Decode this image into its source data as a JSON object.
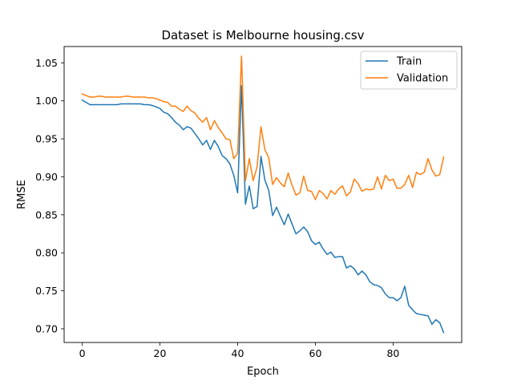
{
  "chart_data": {
    "type": "line",
    "title": "Dataset is Melbourne housing.csv",
    "xlabel": "Epoch",
    "ylabel": "RMSE",
    "xlim": [
      -4.65,
      97.65
    ],
    "ylim": [
      0.682,
      1.0715
    ],
    "xticks": [
      0,
      20,
      40,
      60,
      80
    ],
    "yticks": [
      0.7,
      0.75,
      0.8,
      0.85,
      0.9,
      0.95,
      1.0,
      1.05
    ],
    "ytick_labels": [
      "0.70",
      "0.75",
      "0.80",
      "0.85",
      "0.90",
      "0.95",
      "1.00",
      "1.05"
    ],
    "grid": false,
    "legend_position": "top-right",
    "series": [
      {
        "name": "Train",
        "color": "#1f77b4",
        "values": [
          1.001,
          0.998,
          0.995,
          0.995,
          0.995,
          0.995,
          0.995,
          0.995,
          0.995,
          0.995,
          0.996,
          0.996,
          0.996,
          0.996,
          0.996,
          0.996,
          0.995,
          0.995,
          0.994,
          0.992,
          0.99,
          0.985,
          0.983,
          0.978,
          0.972,
          0.968,
          0.962,
          0.966,
          0.964,
          0.957,
          0.95,
          0.942,
          0.948,
          0.936,
          0.948,
          0.94,
          0.928,
          0.924,
          0.917,
          0.902,
          0.879,
          1.02,
          0.864,
          0.888,
          0.858,
          0.861,
          0.927,
          0.896,
          0.882,
          0.849,
          0.86,
          0.848,
          0.837,
          0.851,
          0.838,
          0.825,
          0.829,
          0.834,
          0.828,
          0.816,
          0.811,
          0.814,
          0.805,
          0.798,
          0.801,
          0.794,
          0.795,
          0.795,
          0.78,
          0.783,
          0.779,
          0.771,
          0.776,
          0.771,
          0.762,
          0.758,
          0.757,
          0.754,
          0.746,
          0.741,
          0.741,
          0.737,
          0.741,
          0.756,
          0.731,
          0.725,
          0.72,
          0.719,
          0.718,
          0.717,
          0.706,
          0.712,
          0.708,
          0.695
        ]
      },
      {
        "name": "Validation",
        "color": "#ff7f0e",
        "values": [
          1.009,
          1.007,
          1.005,
          1.005,
          1.006,
          1.006,
          1.005,
          1.005,
          1.005,
          1.005,
          1.005,
          1.006,
          1.006,
          1.005,
          1.005,
          1.005,
          1.005,
          1.004,
          1.004,
          1.003,
          1.001,
          0.999,
          0.998,
          0.993,
          0.993,
          0.989,
          0.986,
          0.993,
          0.987,
          0.984,
          0.977,
          0.972,
          0.978,
          0.962,
          0.974,
          0.965,
          0.958,
          0.95,
          0.949,
          0.924,
          0.931,
          1.059,
          0.895,
          0.924,
          0.895,
          0.913,
          0.966,
          0.936,
          0.925,
          0.89,
          0.899,
          0.892,
          0.887,
          0.905,
          0.889,
          0.876,
          0.879,
          0.901,
          0.882,
          0.881,
          0.87,
          0.882,
          0.878,
          0.871,
          0.882,
          0.877,
          0.884,
          0.888,
          0.875,
          0.88,
          0.897,
          0.891,
          0.881,
          0.884,
          0.883,
          0.884,
          0.9,
          0.884,
          0.902,
          0.895,
          0.897,
          0.885,
          0.885,
          0.89,
          0.902,
          0.886,
          0.906,
          0.903,
          0.906,
          0.924,
          0.909,
          0.901,
          0.903,
          0.926
        ]
      }
    ]
  }
}
